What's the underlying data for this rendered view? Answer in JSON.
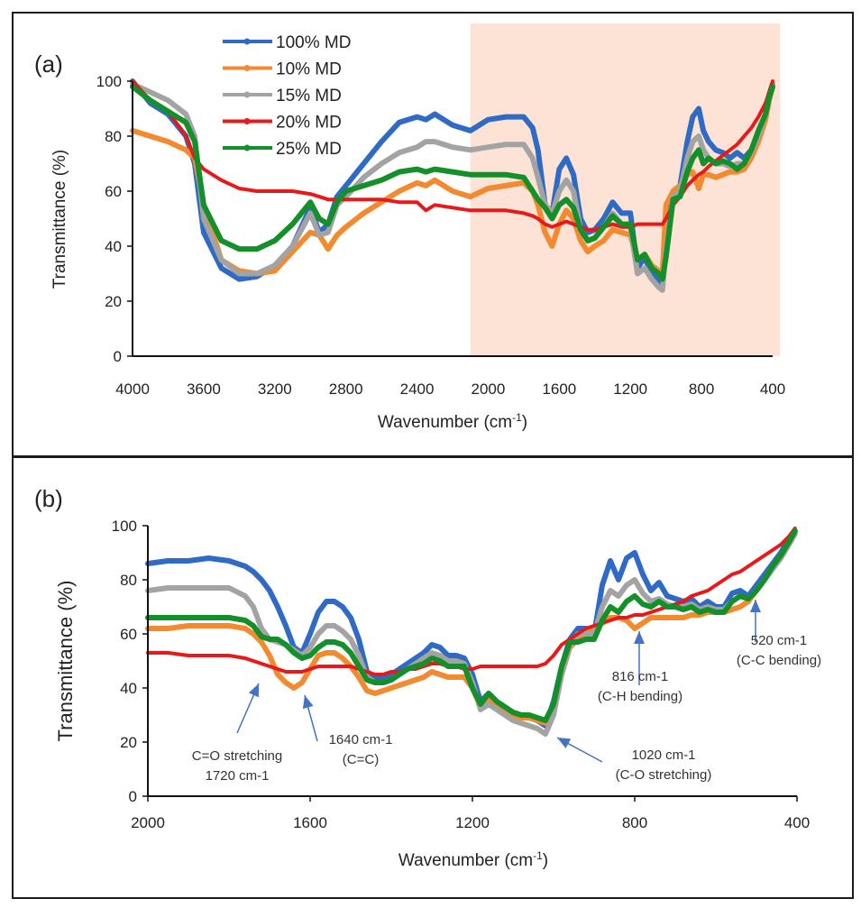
{
  "chart_data": [
    {
      "panel_label": "(a)",
      "type": "line",
      "title": "",
      "xlabel": "Wavenumber (cm-1)",
      "xlabel_base": "Wavenumber (cm",
      "xlabel_sup": "-1",
      "xlabel_end": ")",
      "ylabel": "Transmittance (%)",
      "xlim": [
        4000,
        400
      ],
      "ylim": [
        0,
        100
      ],
      "x_ticks": [
        4000,
        3600,
        3200,
        2800,
        2400,
        2000,
        1600,
        1200,
        800,
        400
      ],
      "y_ticks": [
        0,
        20,
        40,
        60,
        80,
        100
      ],
      "grid": false,
      "legend_position": "top-left",
      "highlight_region": {
        "from": 2100,
        "to": 400,
        "color": "#fde3d6"
      },
      "x": [
        4000,
        3900,
        3800,
        3700,
        3650,
        3600,
        3500,
        3400,
        3300,
        3200,
        3100,
        3000,
        2950,
        2900,
        2850,
        2800,
        2700,
        2600,
        2500,
        2400,
        2350,
        2300,
        2200,
        2100,
        2000,
        1900,
        1800,
        1750,
        1720,
        1680,
        1640,
        1600,
        1560,
        1520,
        1480,
        1440,
        1400,
        1350,
        1300,
        1250,
        1200,
        1160,
        1120,
        1080,
        1040,
        1020,
        1000,
        960,
        920,
        880,
        850,
        816,
        790,
        760,
        720,
        680,
        640,
        600,
        560,
        520,
        480,
        440,
        420,
        400
      ],
      "series": [
        {
          "name": "100% MD",
          "color": "#2f6bc4",
          "values": [
            100,
            92,
            88,
            80,
            70,
            45,
            32,
            28,
            29,
            33,
            40,
            54,
            45,
            48,
            58,
            62,
            70,
            78,
            85,
            87,
            86,
            88,
            84,
            82,
            86,
            87,
            87,
            83,
            75,
            55,
            52,
            68,
            72,
            66,
            50,
            45,
            46,
            50,
            56,
            52,
            52,
            32,
            36,
            30,
            28,
            26,
            40,
            60,
            62,
            78,
            87,
            90,
            82,
            78,
            75,
            74,
            72,
            74,
            72,
            75,
            80,
            88,
            95,
            99
          ]
        },
        {
          "name": "10% MD",
          "color": "#f28a30",
          "values": [
            82,
            80,
            78,
            75,
            72,
            55,
            35,
            31,
            30,
            31,
            38,
            45,
            44,
            39,
            44,
            47,
            52,
            56,
            60,
            63,
            62,
            64,
            60,
            58,
            61,
            62,
            63,
            60,
            55,
            45,
            40,
            48,
            53,
            50,
            42,
            38,
            40,
            42,
            46,
            45,
            44,
            35,
            37,
            33,
            31,
            30,
            55,
            60,
            62,
            66,
            67,
            61,
            66,
            66,
            65,
            66,
            67,
            67,
            68,
            72,
            78,
            86,
            93,
            98
          ]
        },
        {
          "name": "15% MD",
          "color": "#a3a3a3",
          "values": [
            99,
            96,
            93,
            88,
            80,
            50,
            35,
            30,
            30,
            33,
            40,
            52,
            44,
            45,
            55,
            58,
            65,
            70,
            74,
            76,
            78,
            78,
            76,
            75,
            76,
            77,
            77,
            72,
            65,
            55,
            52,
            60,
            64,
            60,
            46,
            42,
            43,
            47,
            52,
            48,
            47,
            30,
            32,
            28,
            25,
            24,
            38,
            58,
            60,
            72,
            78,
            80,
            75,
            72,
            70,
            70,
            69,
            70,
            70,
            74,
            80,
            88,
            94,
            99
          ]
        },
        {
          "name": "20% MD",
          "color": "#e8191b",
          "values": [
            100,
            93,
            89,
            80,
            72,
            68,
            64,
            61,
            60,
            60,
            60,
            59,
            58,
            57,
            57,
            57,
            57,
            57,
            56,
            56,
            53,
            55,
            54,
            53,
            53,
            53,
            52,
            51,
            50,
            48,
            47,
            48,
            49,
            48,
            47,
            46,
            46,
            47,
            48,
            47,
            47,
            48,
            48,
            48,
            48,
            48,
            50,
            55,
            58,
            62,
            64,
            66,
            67,
            69,
            71,
            73,
            75,
            77,
            80,
            83,
            87,
            92,
            96,
            100
          ]
        },
        {
          "name": "25% MD",
          "color": "#14902b",
          "values": [
            98,
            93,
            89,
            85,
            78,
            55,
            42,
            39,
            39,
            42,
            48,
            56,
            50,
            48,
            56,
            60,
            62,
            64,
            67,
            68,
            67,
            68,
            67,
            66,
            66,
            66,
            65,
            60,
            57,
            54,
            50,
            55,
            57,
            54,
            46,
            42,
            43,
            47,
            51,
            48,
            48,
            35,
            37,
            32,
            30,
            28,
            36,
            57,
            58,
            67,
            72,
            75,
            70,
            72,
            70,
            71,
            70,
            68,
            70,
            75,
            82,
            88,
            94,
            98
          ]
        }
      ]
    },
    {
      "panel_label": "(b)",
      "type": "line",
      "title": "",
      "xlabel": "Wavenumber (cm-1)",
      "xlabel_base": "Wavenumber (cm",
      "xlabel_sup": "-1",
      "xlabel_end": ")",
      "ylabel": "Transmittance (%)",
      "xlim": [
        2000,
        400
      ],
      "ylim": [
        0,
        100
      ],
      "x_ticks": [
        2000,
        1600,
        1200,
        800,
        400
      ],
      "y_ticks": [
        0,
        20,
        40,
        60,
        80,
        100
      ],
      "grid": false,
      "x": [
        2000,
        1950,
        1900,
        1850,
        1800,
        1760,
        1740,
        1720,
        1700,
        1680,
        1660,
        1640,
        1620,
        1600,
        1580,
        1560,
        1540,
        1520,
        1500,
        1480,
        1460,
        1440,
        1420,
        1400,
        1380,
        1360,
        1340,
        1320,
        1300,
        1280,
        1260,
        1240,
        1220,
        1200,
        1180,
        1160,
        1140,
        1120,
        1100,
        1080,
        1060,
        1040,
        1020,
        1000,
        980,
        960,
        940,
        920,
        900,
        880,
        860,
        840,
        820,
        800,
        780,
        760,
        740,
        720,
        700,
        680,
        660,
        640,
        620,
        600,
        580,
        560,
        540,
        520,
        500,
        480,
        460,
        440,
        420,
        405
      ],
      "series": [
        {
          "name": "100% MD",
          "color": "#2f6bc4",
          "values": [
            86,
            87,
            87,
            88,
            87,
            85,
            83,
            80,
            76,
            70,
            63,
            55,
            53,
            60,
            68,
            72,
            72,
            70,
            66,
            58,
            46,
            44,
            44,
            45,
            47,
            49,
            51,
            53,
            56,
            55,
            52,
            52,
            51,
            45,
            35,
            38,
            35,
            33,
            31,
            30,
            29,
            28,
            26,
            35,
            48,
            58,
            62,
            62,
            60,
            78,
            87,
            80,
            88,
            90,
            82,
            76,
            79,
            74,
            73,
            72,
            73,
            70,
            72,
            70,
            70,
            75,
            76,
            74,
            78,
            82,
            86,
            90,
            95,
            98
          ]
        },
        {
          "name": "10% MD",
          "color": "#f28a30",
          "values": [
            62,
            62,
            63,
            63,
            63,
            62,
            60,
            57,
            52,
            45,
            42,
            40,
            42,
            47,
            52,
            53,
            53,
            51,
            48,
            44,
            39,
            38,
            39,
            40,
            41,
            42,
            43,
            44,
            46,
            45,
            44,
            44,
            44,
            40,
            33,
            36,
            33,
            32,
            30,
            29,
            29,
            28,
            27,
            32,
            45,
            55,
            58,
            60,
            62,
            64,
            66,
            66,
            65,
            62,
            64,
            66,
            66,
            66,
            66,
            66,
            67,
            67,
            68,
            68,
            68,
            69,
            70,
            72,
            76,
            80,
            84,
            88,
            93,
            97
          ]
        },
        {
          "name": "15% MD",
          "color": "#a3a3a3",
          "values": [
            76,
            77,
            77,
            77,
            77,
            74,
            70,
            62,
            58,
            57,
            56,
            54,
            52,
            55,
            60,
            63,
            63,
            61,
            58,
            52,
            44,
            42,
            42,
            43,
            45,
            47,
            49,
            51,
            53,
            52,
            50,
            50,
            49,
            42,
            32,
            34,
            32,
            30,
            28,
            27,
            26,
            25,
            23,
            30,
            45,
            56,
            60,
            60,
            60,
            70,
            76,
            74,
            78,
            80,
            75,
            72,
            73,
            71,
            70,
            70,
            71,
            69,
            70,
            69,
            69,
            72,
            74,
            73,
            76,
            80,
            84,
            88,
            93,
            97
          ]
        },
        {
          "name": "20% MD",
          "color": "#e8191b",
          "values": [
            53,
            53,
            52,
            52,
            52,
            51,
            50,
            49,
            48,
            47,
            46,
            46,
            46,
            47,
            48,
            48,
            48,
            48,
            48,
            47,
            46,
            45,
            45,
            46,
            46,
            47,
            47,
            48,
            49,
            49,
            48,
            48,
            47,
            47,
            48,
            48,
            48,
            48,
            48,
            48,
            48,
            48,
            49,
            52,
            56,
            58,
            60,
            62,
            63,
            64,
            65,
            66,
            66,
            67,
            67,
            68,
            69,
            70,
            71,
            72,
            74,
            75,
            76,
            78,
            80,
            82,
            83,
            85,
            87,
            89,
            91,
            93,
            96,
            99
          ]
        },
        {
          "name": "25% MD",
          "color": "#14902b",
          "values": [
            66,
            66,
            66,
            66,
            66,
            65,
            63,
            59,
            58,
            58,
            56,
            53,
            51,
            52,
            55,
            57,
            57,
            56,
            53,
            48,
            43,
            42,
            42,
            43,
            45,
            47,
            48,
            49,
            51,
            50,
            48,
            48,
            48,
            40,
            34,
            38,
            35,
            33,
            31,
            30,
            30,
            29,
            28,
            34,
            48,
            57,
            57,
            58,
            58,
            65,
            70,
            68,
            72,
            74,
            71,
            70,
            72,
            70,
            70,
            69,
            70,
            68,
            69,
            68,
            68,
            72,
            74,
            73,
            76,
            80,
            85,
            89,
            94,
            98
          ]
        }
      ],
      "annotations": [
        {
          "lines": [
            "C=O stretching",
            "1720 cm-1"
          ],
          "target": 1720
        },
        {
          "lines": [
            "1640 cm-1",
            "(C=C)"
          ],
          "target": 1640
        },
        {
          "lines": [
            "1020 cm-1",
            "(C-O stretching)"
          ],
          "target": 1020
        },
        {
          "lines": [
            "816 cm-1",
            "(C-H bending)"
          ],
          "target": 816
        },
        {
          "lines": [
            "520 cm-1",
            "(C-C bending)"
          ],
          "target": 520
        }
      ],
      "annotation_color": "#4472c4"
    }
  ]
}
